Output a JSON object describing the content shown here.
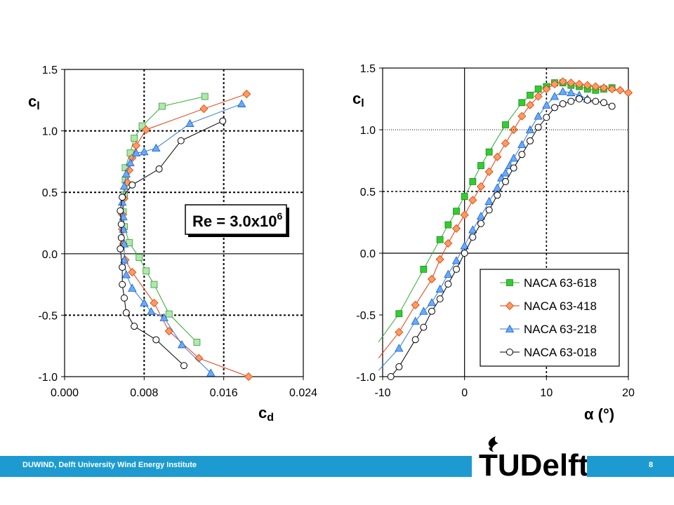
{
  "footer": {
    "institute": "DUWIND, Delft University Wind Energy Institute",
    "page_number": "8",
    "logo_text": "TUDelft"
  },
  "colors": {
    "green": "#33cc33",
    "orange": "#ff9966",
    "blue": "#66aaff",
    "black": "#000000",
    "footer_bar": "#1d9bd1"
  },
  "chart_data": [
    {
      "type": "line",
      "xlabel": "c_d",
      "ylabel": "c_l",
      "xlim": [
        0.0,
        0.024
      ],
      "ylim": [
        -1.0,
        1.5
      ],
      "xticks": [
        "0.000",
        "0.008",
        "0.016",
        "0.024"
      ],
      "yticks": [
        "-1.0",
        "-0.5",
        "0.0",
        "0.5",
        "1.0",
        "1.5"
      ],
      "grid": "dashed at 0.008, 0.016 and 0.5 steps",
      "annotation": {
        "prefix": "Re = 3.0x10",
        "exponent": "6"
      },
      "series": [
        {
          "name": "NACA 63-618",
          "color": "green",
          "marker": "square-light",
          "points": [
            [
              0.0133,
              -0.72
            ],
            [
              0.0105,
              -0.49
            ],
            [
              0.009,
              -0.25
            ],
            [
              0.0082,
              -0.14
            ],
            [
              0.0075,
              -0.03
            ],
            [
              0.0065,
              0.09
            ],
            [
              0.006,
              0.22
            ],
            [
              0.0059,
              0.34
            ],
            [
              0.006,
              0.48
            ],
            [
              0.0061,
              0.6
            ],
            [
              0.0061,
              0.7
            ],
            [
              0.0066,
              0.82
            ],
            [
              0.007,
              0.94
            ],
            [
              0.0078,
              1.04
            ],
            [
              0.0098,
              1.2
            ],
            [
              0.0141,
              1.28
            ]
          ]
        },
        {
          "name": "NACA 63-418",
          "color": "orange",
          "marker": "diamond",
          "points": [
            [
              0.0185,
              -1.0
            ],
            [
              0.0135,
              -0.85
            ],
            [
              0.0105,
              -0.63
            ],
            [
              0.009,
              -0.4
            ],
            [
              0.0068,
              -0.15
            ],
            [
              0.0061,
              -0.05
            ],
            [
              0.0059,
              0.08
            ],
            [
              0.0058,
              0.2
            ],
            [
              0.0058,
              0.32
            ],
            [
              0.006,
              0.45
            ],
            [
              0.0063,
              0.58
            ],
            [
              0.0065,
              0.68
            ],
            [
              0.0068,
              0.78
            ],
            [
              0.0072,
              0.88
            ],
            [
              0.0082,
              1.01
            ],
            [
              0.014,
              1.18
            ],
            [
              0.0183,
              1.3
            ]
          ]
        },
        {
          "name": "NACA 63-218",
          "color": "blue",
          "marker": "triangle",
          "points": [
            [
              0.0147,
              -0.97
            ],
            [
              0.0118,
              -0.74
            ],
            [
              0.01,
              -0.52
            ],
            [
              0.0087,
              -0.47
            ],
            [
              0.008,
              -0.4
            ],
            [
              0.0068,
              -0.28
            ],
            [
              0.0062,
              -0.17
            ],
            [
              0.006,
              -0.05
            ],
            [
              0.006,
              0.08
            ],
            [
              0.0059,
              0.2
            ],
            [
              0.0059,
              0.3
            ],
            [
              0.0058,
              0.42
            ],
            [
              0.006,
              0.55
            ],
            [
              0.0062,
              0.65
            ],
            [
              0.0066,
              0.74
            ],
            [
              0.0072,
              0.82
            ],
            [
              0.008,
              0.83
            ],
            [
              0.0092,
              0.86
            ],
            [
              0.0126,
              1.06
            ],
            [
              0.0178,
              1.22
            ]
          ]
        },
        {
          "name": "NACA 63-018",
          "color": "black",
          "marker": "circle-open",
          "points": [
            [
              0.012,
              -0.91
            ],
            [
              0.0092,
              -0.7
            ],
            [
              0.007,
              -0.59
            ],
            [
              0.0062,
              -0.48
            ],
            [
              0.006,
              -0.36
            ],
            [
              0.0058,
              -0.25
            ],
            [
              0.0058,
              -0.11
            ],
            [
              0.0056,
              0.04
            ],
            [
              0.0057,
              0.13
            ],
            [
              0.0057,
              0.24
            ],
            [
              0.0056,
              0.35
            ],
            [
              0.0058,
              0.46
            ],
            [
              0.0068,
              0.56
            ],
            [
              0.0095,
              0.69
            ],
            [
              0.0117,
              0.92
            ],
            [
              0.0159,
              1.08
            ]
          ]
        }
      ]
    },
    {
      "type": "line",
      "xlabel": "α (°)",
      "ylabel": "c_l",
      "xlim": [
        -10,
        20
      ],
      "ylim": [
        -1.0,
        1.5
      ],
      "xticks": [
        "-10",
        "0",
        "10",
        "20"
      ],
      "yticks": [
        "-1.0",
        "-0.5",
        "0.0",
        "0.5",
        "1.0",
        "1.5"
      ],
      "grid": "dashed at x=10 and y=0.5, 1.0; solid axes at x=0, y=0",
      "legend": "bottom-right",
      "series": [
        {
          "name": "NACA 63-618",
          "color": "green",
          "marker": "square-filled",
          "points": [
            [
              -10.5,
              -0.72
            ],
            [
              -8.0,
              -0.49
            ],
            [
              -5.0,
              -0.13
            ],
            [
              -3.0,
              0.11
            ],
            [
              -2.0,
              0.23
            ],
            [
              -1.0,
              0.34
            ],
            [
              0.0,
              0.46
            ],
            [
              1.0,
              0.58
            ],
            [
              2.0,
              0.71
            ],
            [
              3.0,
              0.82
            ],
            [
              5.0,
              1.04
            ],
            [
              7.0,
              1.22
            ],
            [
              8.0,
              1.28
            ],
            [
              9.0,
              1.33
            ],
            [
              10.0,
              1.35
            ],
            [
              11.0,
              1.38
            ],
            [
              12.0,
              1.38
            ],
            [
              13.0,
              1.36
            ],
            [
              14.0,
              1.35
            ],
            [
              15.0,
              1.33
            ],
            [
              16.0,
              1.32
            ],
            [
              17.0,
              1.33
            ],
            [
              18.0,
              1.34
            ]
          ]
        },
        {
          "name": "NACA 63-418",
          "color": "orange",
          "marker": "diamond",
          "points": [
            [
              -10.5,
              -0.85
            ],
            [
              -8.0,
              -0.64
            ],
            [
              -6.0,
              -0.42
            ],
            [
              -4.0,
              -0.21
            ],
            [
              -3.0,
              -0.05
            ],
            [
              -2.0,
              0.08
            ],
            [
              -1.0,
              0.2
            ],
            [
              0.0,
              0.31
            ],
            [
              1.0,
              0.43
            ],
            [
              2.0,
              0.54
            ],
            [
              3.0,
              0.66
            ],
            [
              4.0,
              0.78
            ],
            [
              5.0,
              0.89
            ],
            [
              6.0,
              1.0
            ],
            [
              7.0,
              1.11
            ],
            [
              8.0,
              1.2
            ],
            [
              9.0,
              1.27
            ],
            [
              10.0,
              1.33
            ],
            [
              11.0,
              1.37
            ],
            [
              12.0,
              1.39
            ],
            [
              13.0,
              1.38
            ],
            [
              14.0,
              1.37
            ],
            [
              15.0,
              1.36
            ],
            [
              16.0,
              1.35
            ],
            [
              17.0,
              1.34
            ],
            [
              18.0,
              1.33
            ],
            [
              19.0,
              1.32
            ],
            [
              20.0,
              1.3
            ]
          ]
        },
        {
          "name": "NACA 63-218",
          "color": "blue",
          "marker": "triangle",
          "points": [
            [
              -10.5,
              -0.95
            ],
            [
              -8.0,
              -0.77
            ],
            [
              -6.0,
              -0.55
            ],
            [
              -5.0,
              -0.47
            ],
            [
              -4.0,
              -0.4
            ],
            [
              -3.0,
              -0.29
            ],
            [
              -2.0,
              -0.17
            ],
            [
              -1.0,
              -0.06
            ],
            [
              0.0,
              0.06
            ],
            [
              1.0,
              0.19
            ],
            [
              2.0,
              0.3
            ],
            [
              3.0,
              0.42
            ],
            [
              4.0,
              0.53
            ],
            [
              4.5,
              0.61
            ],
            [
              5.0,
              0.65
            ],
            [
              5.5,
              0.71
            ],
            [
              6.0,
              0.77
            ],
            [
              7.0,
              0.88
            ],
            [
              8.0,
              1.0
            ],
            [
              9.0,
              1.11
            ],
            [
              10.0,
              1.2
            ],
            [
              11.0,
              1.27
            ],
            [
              12.0,
              1.31
            ],
            [
              13.0,
              1.3
            ],
            [
              14.0,
              1.28
            ],
            [
              15.0,
              1.25
            ]
          ]
        },
        {
          "name": "NACA 63-018",
          "color": "black",
          "marker": "circle-open",
          "points": [
            [
              -9.0,
              -1.0
            ],
            [
              -8.0,
              -0.92
            ],
            [
              -6.0,
              -0.7
            ],
            [
              -5.0,
              -0.6
            ],
            [
              -4.0,
              -0.47
            ],
            [
              -3.0,
              -0.37
            ],
            [
              -2.0,
              -0.25
            ],
            [
              -1.0,
              -0.13
            ],
            [
              0.0,
              0.0
            ],
            [
              1.0,
              0.13
            ],
            [
              2.0,
              0.24
            ],
            [
              3.0,
              0.35
            ],
            [
              4.0,
              0.47
            ],
            [
              5.0,
              0.58
            ],
            [
              6.0,
              0.69
            ],
            [
              7.0,
              0.8
            ],
            [
              8.0,
              0.91
            ],
            [
              9.0,
              1.02
            ],
            [
              10.0,
              1.1
            ],
            [
              11.0,
              1.18
            ],
            [
              12.0,
              1.21
            ],
            [
              13.0,
              1.23
            ],
            [
              14.0,
              1.25
            ],
            [
              15.0,
              1.24
            ],
            [
              16.0,
              1.23
            ],
            [
              17.0,
              1.22
            ],
            [
              18.0,
              1.19
            ]
          ]
        }
      ]
    }
  ]
}
